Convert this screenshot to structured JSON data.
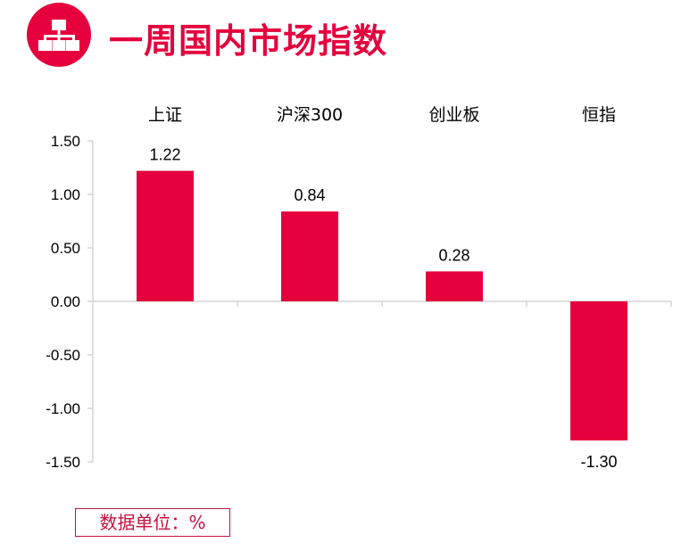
{
  "header": {
    "title": "一周国内市场指数",
    "icon": "hierarchy-icon",
    "accent_color": "#e5003d"
  },
  "unit_note": "数据单位：%",
  "chart_data": {
    "type": "bar",
    "categories": [
      "上证",
      "沪深300",
      "创业板",
      "恒指"
    ],
    "values": [
      1.22,
      0.84,
      0.28,
      -1.3
    ],
    "data_labels": [
      "1.22",
      "0.84",
      "0.28",
      "-1.30"
    ],
    "title": "",
    "xlabel": "",
    "ylabel": "",
    "ylim": [
      -1.5,
      1.5
    ],
    "yticks": [
      1.5,
      1.0,
      0.5,
      0.0,
      -0.5,
      -1.0,
      -1.5
    ],
    "ytick_labels": [
      "1.50",
      "1.00",
      "0.50",
      "0.00",
      "-0.50",
      "-1.00",
      "-1.50"
    ],
    "category_axis_position": "top",
    "grid": false,
    "legend": "none",
    "bar_color": "#e5003d"
  }
}
